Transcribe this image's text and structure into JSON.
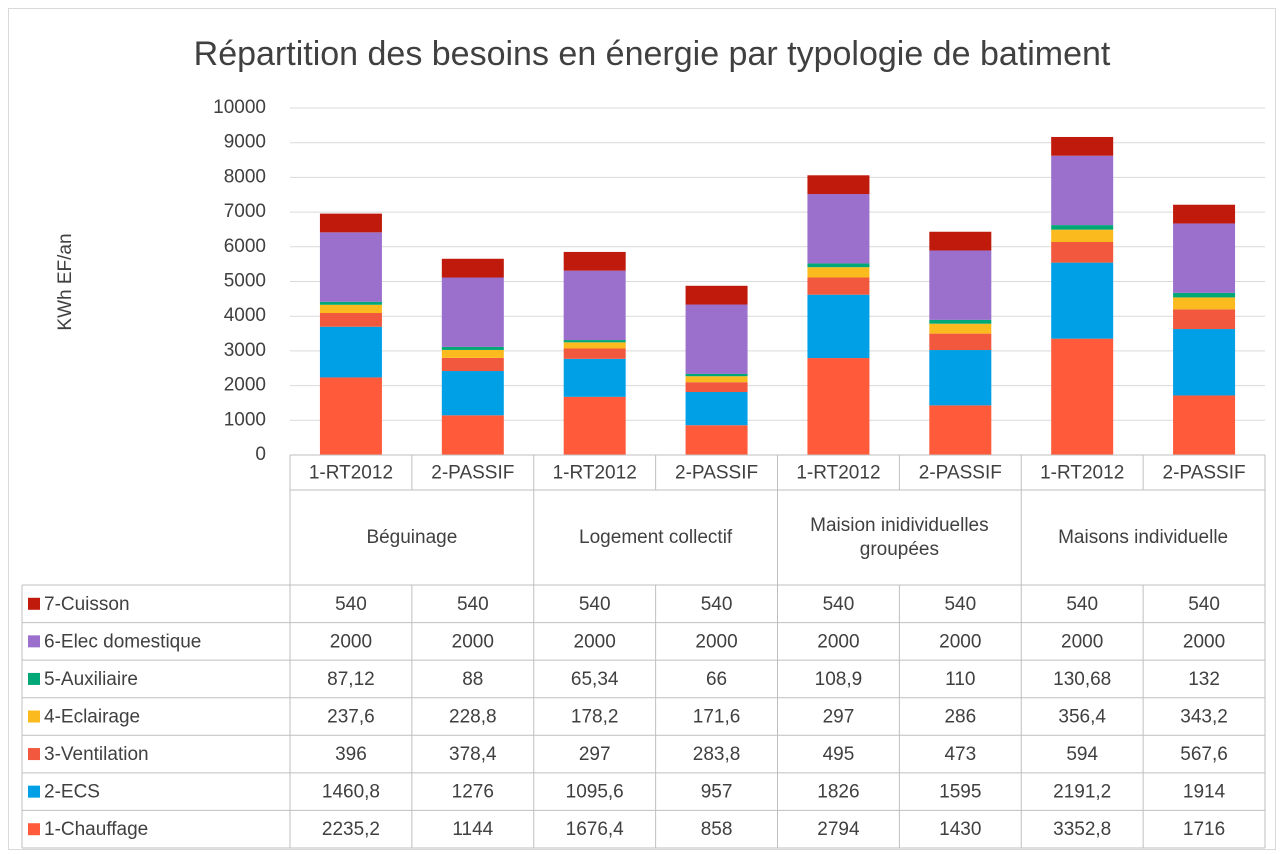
{
  "chart_data": {
    "type": "stacked_bar",
    "title": "Répartition des besoins en énergie par typologie de batiment",
    "y_label": "KWh EF/an",
    "categories": [
      "1-RT2012",
      "2-PASSIF",
      "1-RT2012",
      "2-PASSIF",
      "1-RT2012",
      "2-PASSIF",
      "1-RT2012",
      "2-PASSIF"
    ],
    "groups": [
      "Béguinage",
      "Logement collectif",
      "Maision inidividuelles groupées",
      "Maisons individuelle"
    ],
    "ylim": [
      0,
      10000
    ],
    "yticks": [
      0,
      1000,
      2000,
      3000,
      4000,
      5000,
      6000,
      7000,
      8000,
      9000,
      10000
    ],
    "grid": true,
    "data_table": true,
    "series": [
      {
        "name": "1-Chauffage",
        "color": "#FF5B3B",
        "values": [
          2235.2,
          1144,
          1676.4,
          858,
          2794,
          1430,
          3352.8,
          1716
        ],
        "value_labels": [
          "2235,2",
          "1144",
          "1676,4",
          "858",
          "2794",
          "1430",
          "3352,8",
          "1716"
        ]
      },
      {
        "name": "2-ECS",
        "color": "#00A0E6",
        "values": [
          1460.8,
          1276,
          1095.6,
          957,
          1826,
          1595,
          2191.2,
          1914
        ],
        "value_labels": [
          "1460,8",
          "1276",
          "1095,6",
          "957",
          "1826",
          "1595",
          "2191,2",
          "1914"
        ]
      },
      {
        "name": "3-Ventilation",
        "color": "#F2583D",
        "values": [
          396,
          378.4,
          297,
          283.8,
          495,
          473,
          594,
          567.6
        ],
        "value_labels": [
          "396",
          "378,4",
          "297",
          "283,8",
          "495",
          "473",
          "594",
          "567,6"
        ]
      },
      {
        "name": "4-Eclairage",
        "color": "#FBBB1F",
        "values": [
          237.6,
          228.8,
          178.2,
          171.6,
          297,
          286,
          356.4,
          343.2
        ],
        "value_labels": [
          "237,6",
          "228,8",
          "178,2",
          "171,6",
          "297",
          "286",
          "356,4",
          "343,2"
        ]
      },
      {
        "name": "5-Auxiliaire",
        "color": "#00A878",
        "values": [
          87.12,
          88,
          65.34,
          66,
          108.9,
          110,
          130.68,
          132
        ],
        "value_labels": [
          "87,12",
          "88",
          "65,34",
          "66",
          "108,9",
          "110",
          "130,68",
          "132"
        ]
      },
      {
        "name": "6-Elec domestique",
        "color": "#9A70CC",
        "values": [
          2000,
          2000,
          2000,
          2000,
          2000,
          2000,
          2000,
          2000
        ]
      },
      {
        "name": "7-Cuisson",
        "color": "#C01A0C",
        "values": [
          540,
          540,
          540,
          540,
          540,
          540,
          540,
          540
        ]
      }
    ]
  }
}
